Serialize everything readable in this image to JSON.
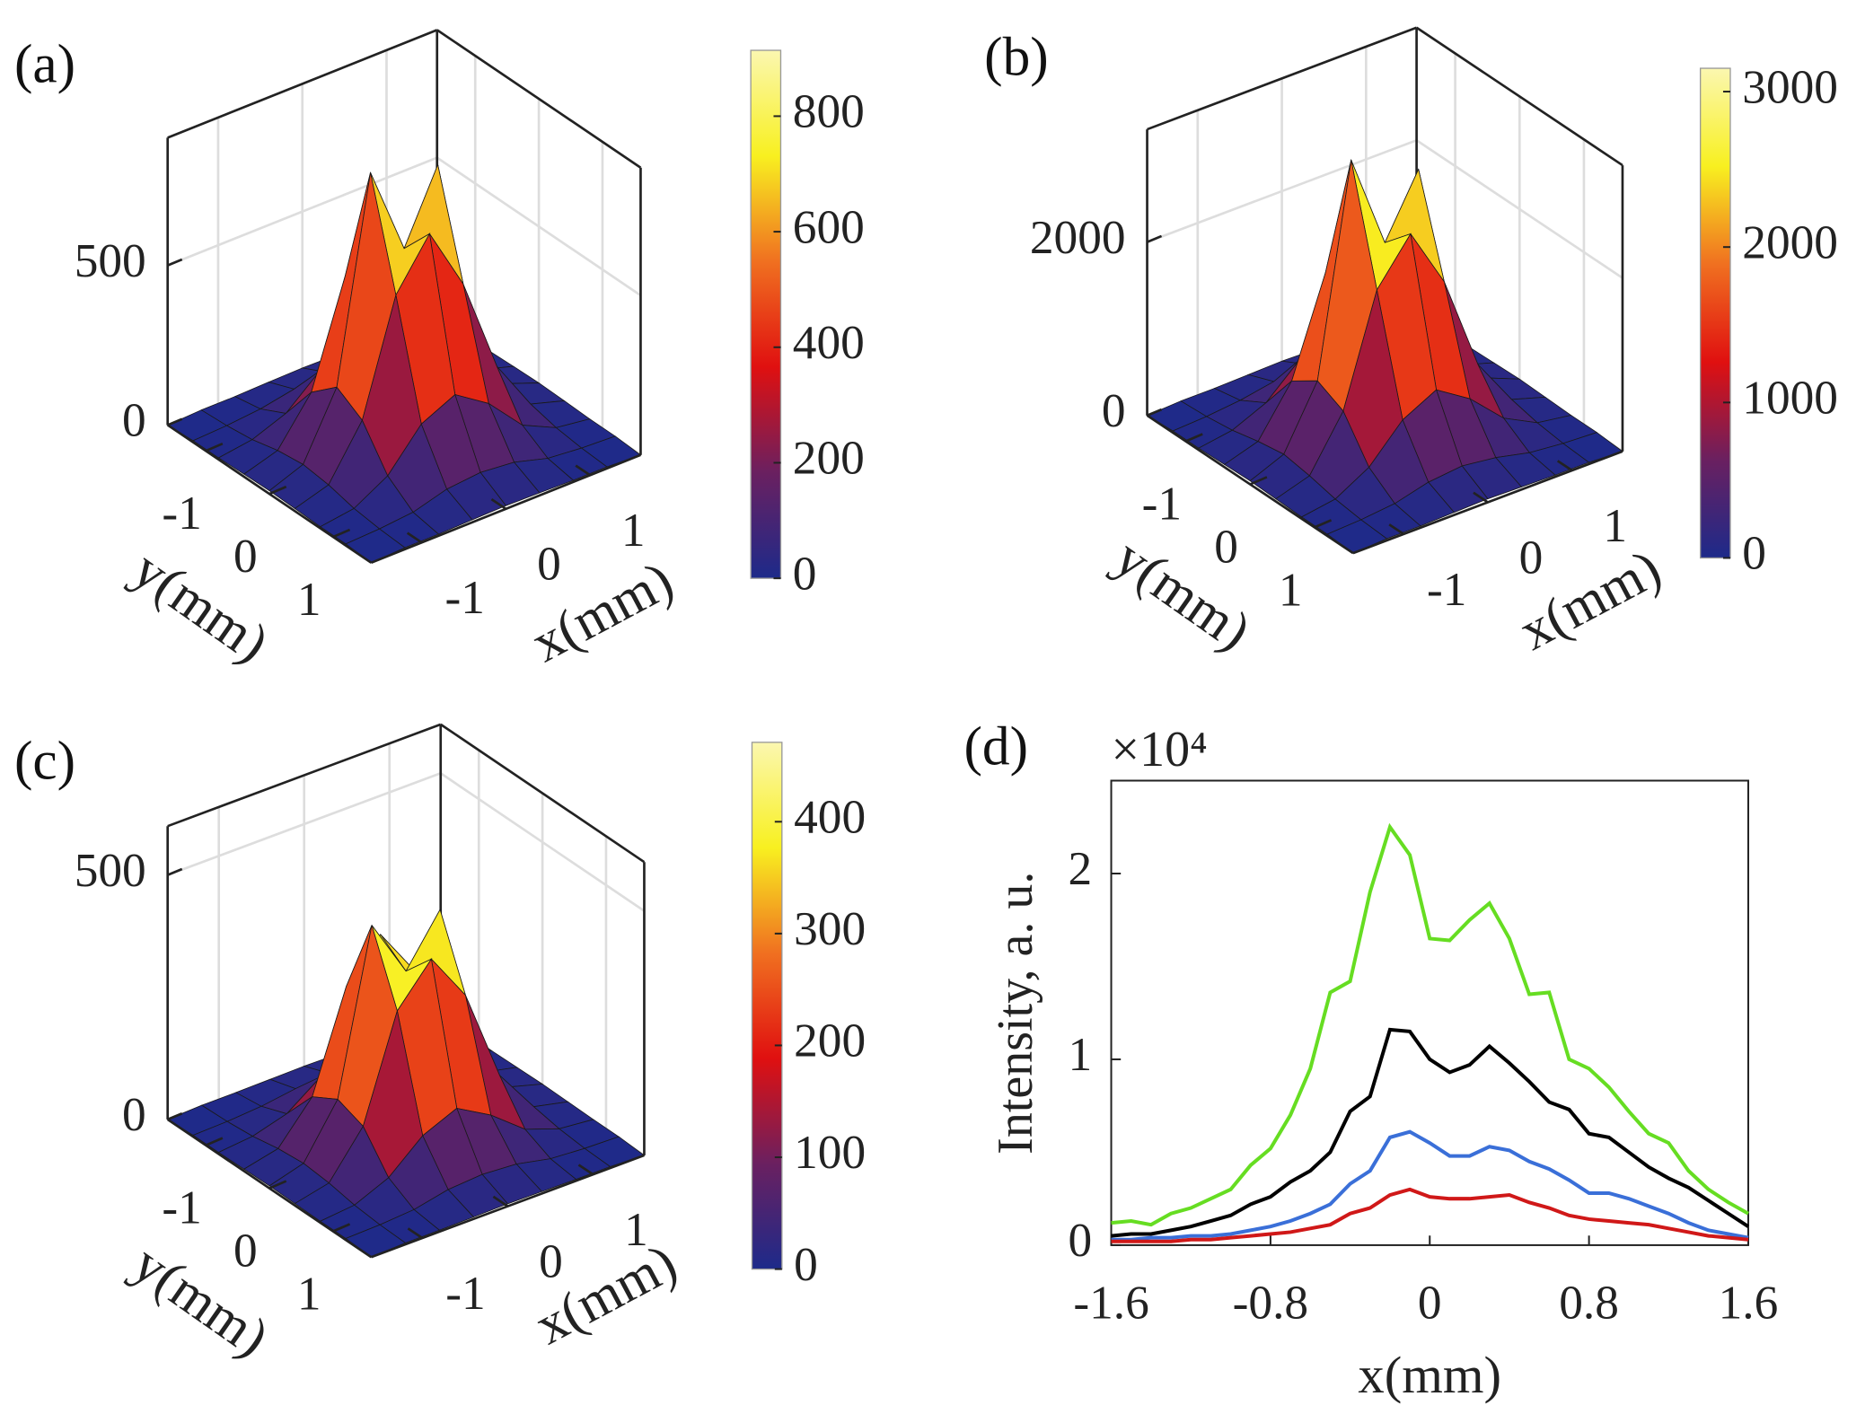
{
  "chart_data": [
    {
      "type": "surface3d",
      "label": "(a)",
      "xlabel": "x(mm)",
      "ylabel": "y(mm)",
      "x": [
        -1.6,
        -1.2,
        -0.8,
        -0.4,
        0,
        0.4,
        0.8,
        1.2,
        1.6
      ],
      "y": [
        -1.6,
        -1.2,
        -0.8,
        -0.4,
        0,
        0.4,
        0.8,
        1.2,
        1.6
      ],
      "z": [
        [
          0,
          5,
          5,
          8,
          10,
          8,
          5,
          5,
          0
        ],
        [
          5,
          10,
          20,
          40,
          50,
          40,
          20,
          10,
          5
        ],
        [
          5,
          20,
          60,
          150,
          200,
          150,
          60,
          20,
          5
        ],
        [
          8,
          40,
          180,
          500,
          650,
          450,
          180,
          40,
          8
        ],
        [
          10,
          50,
          250,
          880,
          600,
          820,
          260,
          50,
          10
        ],
        [
          8,
          40,
          200,
          550,
          700,
          500,
          200,
          40,
          8
        ],
        [
          5,
          20,
          80,
          200,
          250,
          180,
          70,
          20,
          5
        ],
        [
          5,
          10,
          20,
          50,
          60,
          50,
          20,
          10,
          5
        ],
        [
          0,
          5,
          5,
          8,
          10,
          8,
          5,
          5,
          0
        ]
      ],
      "xlim": [
        -1.6,
        1.6
      ],
      "ylim": [
        -1.6,
        1.6
      ],
      "zlim": [
        0,
        900
      ],
      "xticks": [
        -1,
        0,
        1
      ],
      "yticks": [
        -1,
        0,
        1
      ],
      "zticks": [
        0,
        500
      ],
      "clim": [
        0,
        914
      ],
      "cticks": [
        0,
        200,
        400,
        600,
        800
      ],
      "colormap": [
        "#1d2a8a",
        "#6a2060",
        "#e01010",
        "#f07020",
        "#f8f020",
        "#fbf7b0"
      ]
    },
    {
      "type": "surface3d",
      "label": "(b)",
      "xlabel": "x(mm)",
      "ylabel": "y(mm)",
      "x": [
        -1.6,
        -1.2,
        -0.8,
        -0.4,
        0,
        0.4,
        0.8,
        1.2,
        1.6
      ],
      "y": [
        -1.6,
        -1.2,
        -0.8,
        -0.4,
        0,
        0.4,
        0.8,
        1.2,
        1.6
      ],
      "z": [
        [
          0,
          20,
          20,
          30,
          40,
          30,
          20,
          20,
          0
        ],
        [
          20,
          40,
          80,
          150,
          200,
          150,
          80,
          40,
          20
        ],
        [
          20,
          80,
          250,
          600,
          800,
          600,
          250,
          80,
          20
        ],
        [
          30,
          150,
          700,
          1800,
          2400,
          1700,
          700,
          150,
          30
        ],
        [
          40,
          200,
          900,
          3300,
          2200,
          2900,
          950,
          200,
          40
        ],
        [
          30,
          150,
          750,
          2000,
          2500,
          1800,
          700,
          150,
          30
        ],
        [
          20,
          80,
          300,
          700,
          900,
          650,
          280,
          80,
          20
        ],
        [
          20,
          40,
          80,
          180,
          220,
          170,
          80,
          40,
          20
        ],
        [
          0,
          20,
          20,
          30,
          40,
          30,
          20,
          20,
          0
        ]
      ],
      "xlim": [
        -1.6,
        1.6
      ],
      "ylim": [
        -1.6,
        1.6
      ],
      "zlim": [
        0,
        3300
      ],
      "xticks": [
        -1,
        0,
        1
      ],
      "yticks": [
        -1,
        0,
        1
      ],
      "zticks": [
        0,
        2000
      ],
      "clim": [
        0,
        3150
      ],
      "cticks": [
        0,
        1000,
        2000,
        3000
      ],
      "colormap": [
        "#1d2a8a",
        "#6a2060",
        "#e01010",
        "#f07020",
        "#f8f020",
        "#fbf7b0"
      ]
    },
    {
      "type": "surface3d",
      "label": "(c)",
      "xlabel": "x(mm)",
      "ylabel": "y(mm)",
      "x": [
        -1.6,
        -1.2,
        -0.8,
        -0.4,
        0,
        0.4,
        0.8,
        1.2,
        1.6
      ],
      "y": [
        -1.6,
        -1.2,
        -0.8,
        -0.4,
        0,
        0.4,
        0.8,
        1.2,
        1.6
      ],
      "z": [
        [
          0,
          3,
          3,
          4,
          5,
          4,
          3,
          3,
          0
        ],
        [
          3,
          5,
          10,
          20,
          25,
          20,
          10,
          5,
          3
        ],
        [
          3,
          10,
          30,
          80,
          100,
          80,
          30,
          10,
          3
        ],
        [
          4,
          20,
          100,
          300,
          380,
          280,
          100,
          20,
          4
        ],
        [
          5,
          25,
          130,
          460,
          340,
          440,
          140,
          25,
          5
        ],
        [
          4,
          20,
          110,
          320,
          400,
          300,
          110,
          20,
          4
        ],
        [
          3,
          10,
          40,
          100,
          130,
          90,
          35,
          10,
          3
        ],
        [
          3,
          5,
          10,
          25,
          30,
          25,
          10,
          5,
          3
        ],
        [
          0,
          3,
          3,
          4,
          5,
          4,
          3,
          3,
          0
        ]
      ],
      "xlim": [
        -1.6,
        1.6
      ],
      "ylim": [
        -1.6,
        1.6
      ],
      "zlim": [
        0,
        600
      ],
      "xticks": [
        -1,
        0,
        1
      ],
      "yticks": [
        -1,
        0,
        1
      ],
      "zticks": [
        0,
        500
      ],
      "clim": [
        0,
        471
      ],
      "cticks": [
        0,
        100,
        200,
        300,
        400
      ],
      "colormap": [
        "#1d2a8a",
        "#6a2060",
        "#e01010",
        "#f07020",
        "#f8f020",
        "#fbf7b0"
      ]
    },
    {
      "type": "line",
      "label": "(d)",
      "xlabel": "x(mm)",
      "ylabel": "Intensity, a. u.",
      "y_multiplier": "×10⁴",
      "x": [
        -1.6,
        -1.5,
        -1.4,
        -1.3,
        -1.2,
        -1.1,
        -1.0,
        -0.9,
        -0.8,
        -0.7,
        -0.6,
        -0.5,
        -0.4,
        -0.3,
        -0.2,
        -0.1,
        0,
        0.1,
        0.2,
        0.3,
        0.4,
        0.5,
        0.6,
        0.7,
        0.8,
        0.9,
        1.0,
        1.1,
        1.2,
        1.3,
        1.4,
        1.5,
        1.6
      ],
      "xlim": [
        -1.6,
        1.6
      ],
      "ylim": [
        0,
        2.5
      ],
      "xticks": [
        -1.6,
        -0.8,
        0,
        0.8,
        1.6
      ],
      "yticks": [
        0,
        1,
        2
      ],
      "series": [
        {
          "color": "#66dd22",
          "values": [
            0.12,
            0.13,
            0.11,
            0.17,
            0.2,
            0.25,
            0.3,
            0.43,
            0.52,
            0.7,
            0.95,
            1.36,
            1.42,
            1.9,
            2.25,
            2.1,
            1.65,
            1.64,
            1.75,
            1.84,
            1.65,
            1.35,
            1.36,
            1.0,
            0.95,
            0.85,
            0.72,
            0.6,
            0.55,
            0.4,
            0.3,
            0.23,
            0.17
          ]
        },
        {
          "color": "#000000",
          "values": [
            0.05,
            0.06,
            0.06,
            0.08,
            0.1,
            0.13,
            0.16,
            0.22,
            0.26,
            0.34,
            0.4,
            0.5,
            0.72,
            0.8,
            1.16,
            1.15,
            1.0,
            0.93,
            0.97,
            1.07,
            0.98,
            0.88,
            0.77,
            0.73,
            0.6,
            0.58,
            0.5,
            0.42,
            0.36,
            0.31,
            0.24,
            0.17,
            0.1
          ]
        },
        {
          "color": "#3a6fd8",
          "values": [
            0.03,
            0.03,
            0.04,
            0.04,
            0.05,
            0.05,
            0.06,
            0.08,
            0.1,
            0.13,
            0.17,
            0.22,
            0.33,
            0.4,
            0.58,
            0.61,
            0.55,
            0.48,
            0.48,
            0.53,
            0.51,
            0.45,
            0.41,
            0.35,
            0.28,
            0.28,
            0.25,
            0.21,
            0.17,
            0.12,
            0.08,
            0.06,
            0.04
          ]
        },
        {
          "color": "#d01818",
          "values": [
            0.02,
            0.02,
            0.02,
            0.02,
            0.03,
            0.03,
            0.04,
            0.05,
            0.06,
            0.07,
            0.09,
            0.11,
            0.17,
            0.2,
            0.27,
            0.3,
            0.26,
            0.25,
            0.25,
            0.26,
            0.27,
            0.23,
            0.2,
            0.16,
            0.14,
            0.13,
            0.12,
            0.11,
            0.09,
            0.07,
            0.05,
            0.04,
            0.03
          ]
        }
      ]
    }
  ]
}
